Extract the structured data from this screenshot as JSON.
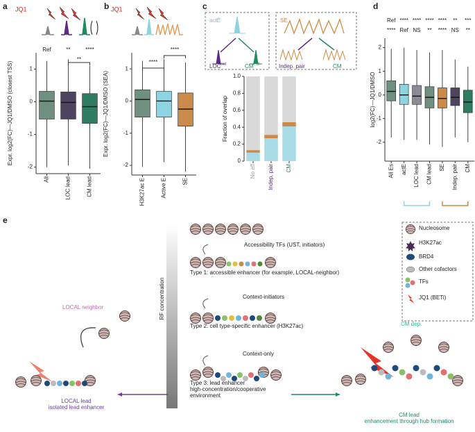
{
  "panel_labels": [
    "a",
    "b",
    "c",
    "d",
    "e"
  ],
  "chart_data": [
    {
      "type": "box",
      "title": "JQ1",
      "ylabel": "Expr. log2(FC)—JQ1/DMSO (closest TSS)",
      "categories": [
        "All",
        "LOC lead",
        "CM lead"
      ],
      "colors": [
        "#6f8f80",
        "#4e4460",
        "#2e7d62"
      ],
      "whislo": [
        -2.0,
        -1.95,
        -2.05
      ],
      "q1": [
        -0.53,
        -0.53,
        -0.66
      ],
      "median": [
        0.02,
        -0.02,
        -0.15
      ],
      "q3": [
        0.32,
        0.3,
        0.25
      ],
      "whishi": [
        1.25,
        1.3,
        1.1
      ],
      "ylim": [
        -2.2,
        1.5
      ],
      "yticks": [
        -2,
        -1,
        0,
        1
      ],
      "annotations": [
        "Ref",
        "**",
        "****",
        "**"
      ]
    },
    {
      "type": "box",
      "title": "JQ1",
      "ylabel": "Expr. log2(FC)—JQ1/DMSO (SEA)",
      "categories": [
        "H3K27ac E",
        "Active E",
        "SE"
      ],
      "colors": [
        "#6f8f80",
        "#8dd3e0",
        "#c98a4a"
      ],
      "whislo": [
        -2.05,
        -1.9,
        -2.2
      ],
      "q1": [
        -0.5,
        -0.5,
        -0.78
      ],
      "median": [
        0.05,
        0,
        -0.25
      ],
      "q3": [
        0.35,
        0.3,
        0.25
      ],
      "whishi": [
        1.25,
        1.3,
        1.2
      ],
      "ylim": [
        -2.3,
        1.5
      ],
      "yticks": [
        -2,
        -1,
        0,
        1
      ],
      "annotations": [
        "****",
        "****"
      ]
    },
    {
      "type": "stacked_bar",
      "ylabel": "Fraction of overlap",
      "categories": [
        "No eff",
        "Indep. pair",
        "CM"
      ],
      "category_colors": [
        "#9a9a9a",
        "#5b2a86",
        "#1f8a5e"
      ],
      "series": [
        {
          "color": "#a9dbe6",
          "values": [
            0.1,
            0.27,
            0.41
          ]
        },
        {
          "color": "#c98a4a",
          "values": [
            0.03,
            0.04,
            0.05
          ]
        },
        {
          "color": "#d9d9d9",
          "values": [
            0.87,
            0.69,
            0.54
          ]
        }
      ],
      "ylim": [
        0,
        1
      ],
      "yticks": [
        0,
        0.2,
        0.4,
        0.6,
        0.8,
        {
          "value": 1,
          "label": "1.0"
        }
      ],
      "schematic": {
        "left_title": "actE",
        "left_a": "LOC",
        "left_a_sup": "lead",
        "left_b": "CM",
        "left_b_sup": "lead",
        "right_title": "SE",
        "right_a": "Indep. pair",
        "right_b": "CM"
      }
    },
    {
      "type": "box",
      "ylabel": "log2(FC)—JQ1/DMSO",
      "categories": [
        "All Es",
        "actE",
        "LOC lead",
        "CM lead",
        "SE",
        "Indep. pair",
        "CM"
      ],
      "colors": [
        "#6f8f80",
        "#8dd3e0",
        "#8a8a98",
        "#6f8f80",
        "#c98a4a",
        "#4e4460",
        "#2e7d62"
      ],
      "whislo": [
        -1.8,
        -1.9,
        -1.9,
        -2.1,
        -2.2,
        -1.8,
        -2.0
      ],
      "q1": [
        -0.25,
        -0.4,
        -0.4,
        -0.55,
        -0.55,
        -0.45,
        -0.75
      ],
      "median": [
        0.15,
        0,
        -0.05,
        -0.1,
        -0.15,
        -0.1,
        -0.3
      ],
      "q3": [
        0.6,
        0.45,
        0.4,
        0.35,
        0.3,
        0.3,
        0.2
      ],
      "whishi": [
        1.95,
        2.0,
        1.9,
        1.8,
        1.9,
        1.5,
        1.2
      ],
      "ylim": [
        -2.8,
        2.4
      ],
      "yticks": [
        -2,
        -1,
        0,
        1,
        2
      ],
      "annotations": [
        "Ref",
        "****",
        "****",
        "****",
        "****",
        "**",
        "***"
      ],
      "annotations_2": [
        "****",
        "Ref",
        "NS",
        "**",
        "****",
        "NS",
        "**"
      ]
    }
  ],
  "schematic_e": {
    "legend": [
      "Nucleosome",
      "H3K27ac",
      "BRD4",
      "Other cofactors",
      "TFs",
      "JQ1 (BETi)"
    ],
    "gradient_label": "RF concentration",
    "step_1": "Accessibility TFs (UST, initiators)",
    "step_1b": "initiators)",
    "type_1": "Type 1: accessible enhancer (for example, LOCAL-neighbor)",
    "step_2": "Context-initiators",
    "type_2": "Type 2: cell type-specific enhancer  (H3K27ac)",
    "step_3": "Context-only",
    "type_3": [
      "Type 3: lead enhancer",
      "high-concentration/cooperative",
      "environment"
    ],
    "left": [
      "LOCAL neighbor",
      "LOCAL lead",
      "isolated lead enhancer"
    ],
    "right": [
      "CM dep.",
      "CM lead",
      "enhancement through hub formation"
    ]
  }
}
